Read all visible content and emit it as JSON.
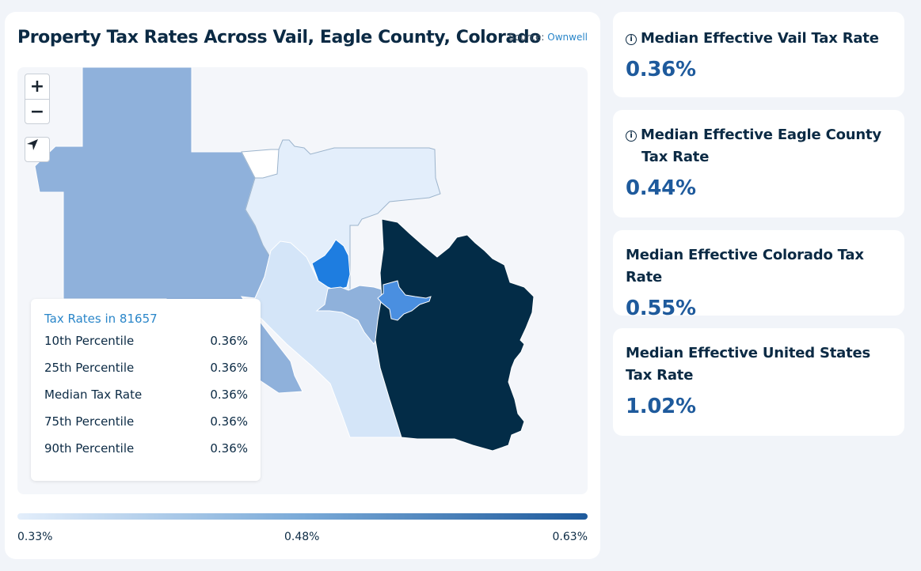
{
  "main": {
    "title": "Property Tax Rates Across Vail, Eagle County, Colorado",
    "source_prefix": "Source: ",
    "source_link": "Ownwell"
  },
  "map": {
    "controls": {
      "zoom_in": "+",
      "zoom_out": "−",
      "zoom_in_icon": "plus-icon",
      "zoom_out_icon": "minus-icon",
      "locate_icon": "navigation-arrow-icon"
    },
    "colors": {
      "lightest": "#e3eefb",
      "light": "#d4e5f8",
      "mid": "#8fb1db",
      "bright": "#1e7de0",
      "medium_blue": "#4a8fe0",
      "dark": "#032c47"
    }
  },
  "legend": {
    "title": "Tax Rates in 81657",
    "rows": [
      {
        "label": "10th Percentile",
        "value": "0.36%"
      },
      {
        "label": "25th Percentile",
        "value": "0.36%"
      },
      {
        "label": "Median Tax Rate",
        "value": "0.36%"
      },
      {
        "label": "75th Percentile",
        "value": "0.36%"
      },
      {
        "label": "90th Percentile",
        "value": "0.36%"
      }
    ]
  },
  "scale": {
    "min": "0.33%",
    "mid": "0.48%",
    "max": "0.63%"
  },
  "side_cards": [
    {
      "label_line1": "Median Effective Vail Tax Rate",
      "label_line2": "",
      "value": "0.36%",
      "icon": "info-icon"
    },
    {
      "label_line1": "Median Effective Eagle County",
      "label_line2": "Tax Rate",
      "value": "0.44%",
      "icon": "info-icon"
    },
    {
      "label_line1": "Median Effective Colorado Tax Rate",
      "label_line2": "",
      "value": "0.55%",
      "icon": ""
    },
    {
      "label_line1": "Median Effective United States",
      "label_line2": "Tax Rate",
      "value": "1.02%",
      "icon": ""
    }
  ]
}
